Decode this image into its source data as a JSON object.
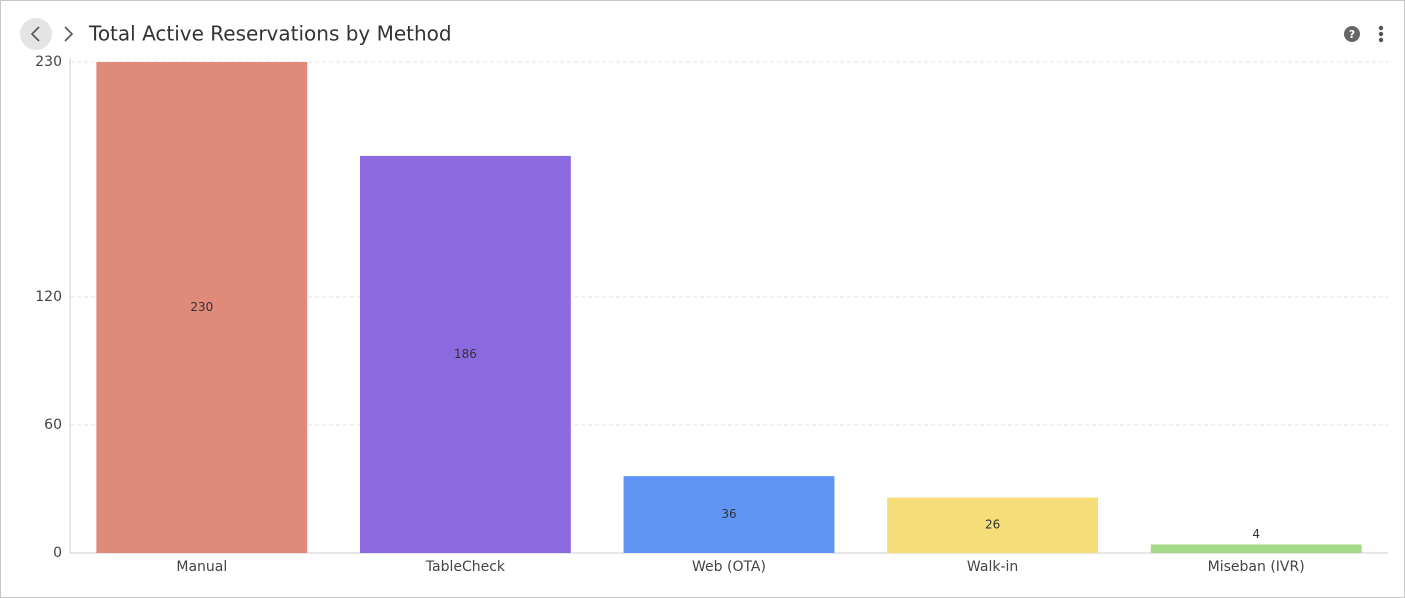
{
  "chart_data": {
    "type": "bar",
    "title": "Total Active Reservations by Method",
    "categories": [
      "Manual",
      "TableCheck",
      "Web (OTA)",
      "Walk-in",
      "Miseban (IVR)"
    ],
    "values": [
      230,
      186,
      36,
      26,
      4
    ],
    "colors": [
      "#e08a7a",
      "#8b6ae0",
      "#6195f5",
      "#f5dd7a",
      "#a6d98a"
    ],
    "ylim": [
      0,
      230
    ],
    "yticks": [
      0,
      60,
      120,
      230
    ],
    "grid": true
  }
}
